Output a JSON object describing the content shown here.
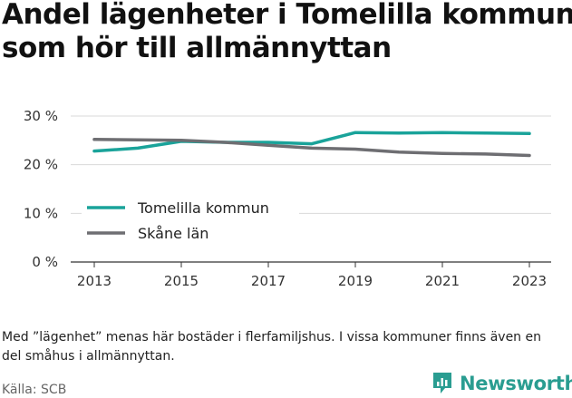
{
  "title_lines": [
    "Andel lägenheter i Tomelilla kommun",
    "som hör till allmännyttan"
  ],
  "note": "Med ”lägenhet” menas här bostäder i flerfamiljshus. I vissa kommuner finns även en del småhus i allmännyttan.",
  "source": "Källa: SCB",
  "brand": "Newsworthy",
  "brand_color": "#2a9d91",
  "chart_data": {
    "type": "line",
    "x": [
      2013,
      2014,
      2015,
      2016,
      2017,
      2018,
      2019,
      2020,
      2021,
      2022,
      2023
    ],
    "series": [
      {
        "name": "Tomelilla kommun",
        "color": "#1aa39a",
        "values": [
          22.8,
          23.4,
          24.8,
          24.6,
          24.6,
          24.3,
          26.6,
          26.5,
          26.6,
          26.5,
          26.4
        ]
      },
      {
        "name": "Skåne län",
        "color": "#6e6e72",
        "values": [
          25.2,
          25.1,
          25.0,
          24.6,
          24.0,
          23.4,
          23.2,
          22.6,
          22.3,
          22.2,
          21.9
        ]
      }
    ],
    "x_ticks": [
      2013,
      2015,
      2017,
      2019,
      2021,
      2023
    ],
    "y_ticks": [
      0,
      10,
      20,
      30
    ],
    "y_tick_labels": [
      "0 %",
      "10 %",
      "20 %",
      "30 %"
    ],
    "ylim": [
      0,
      30
    ],
    "xlim": [
      2013,
      2023
    ],
    "grid": "horizontal",
    "legend_position": "lower-left"
  }
}
